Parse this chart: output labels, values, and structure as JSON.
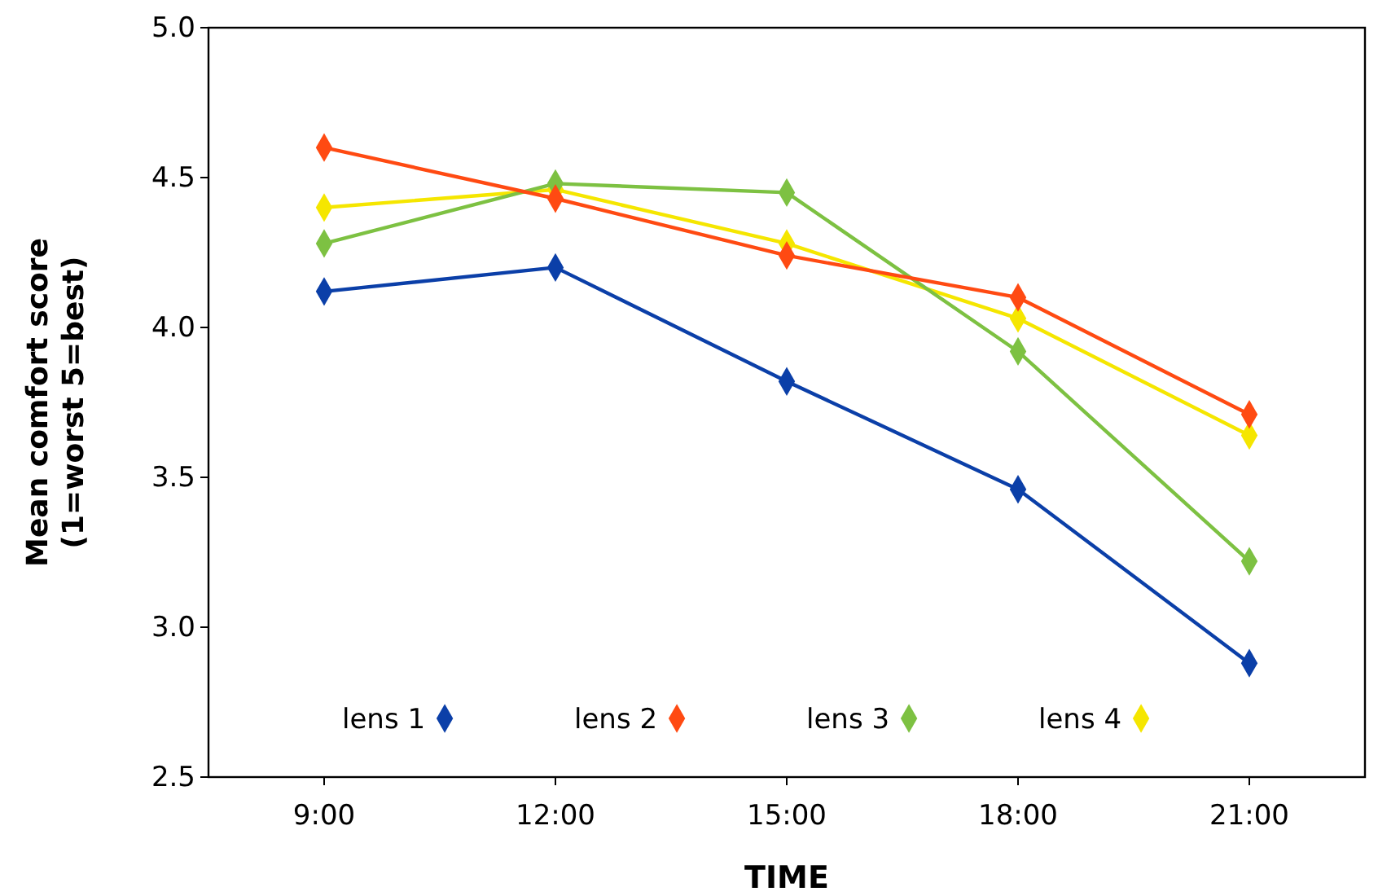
{
  "chart_data": {
    "type": "line",
    "xlabel": "TIME",
    "ylabel": "Mean comfort score\n(1=worst 5=best)",
    "categories": [
      "9:00",
      "12:00",
      "15:00",
      "18:00",
      "21:00"
    ],
    "series": [
      {
        "name": "lens 1",
        "color": "#0b3fa8",
        "values": [
          4.12,
          4.2,
          3.82,
          3.46,
          2.88
        ]
      },
      {
        "name": "lens 2",
        "color": "#ff4a12",
        "values": [
          4.6,
          4.43,
          4.24,
          4.1,
          3.71
        ]
      },
      {
        "name": "lens 3",
        "color": "#7dc142",
        "values": [
          4.28,
          4.48,
          4.45,
          3.92,
          3.22
        ]
      },
      {
        "name": "lens 4",
        "color": "#f5e600",
        "values": [
          4.4,
          4.46,
          4.28,
          4.03,
          3.64
        ]
      }
    ],
    "ylim": [
      2.5,
      5.0
    ],
    "yticks": [
      {
        "value": 2.5,
        "label": "2.5"
      },
      {
        "value": 3,
        "label": "3.0"
      },
      {
        "value": 3.5,
        "label": "3.5"
      },
      {
        "value": 4,
        "label": "4.0"
      },
      {
        "value": 4.5,
        "label": "4.5"
      },
      {
        "value": 5,
        "label": "5.0"
      }
    ],
    "marker": "diamond",
    "line_style": "solid",
    "legend": "bottom",
    "grid": false
  }
}
